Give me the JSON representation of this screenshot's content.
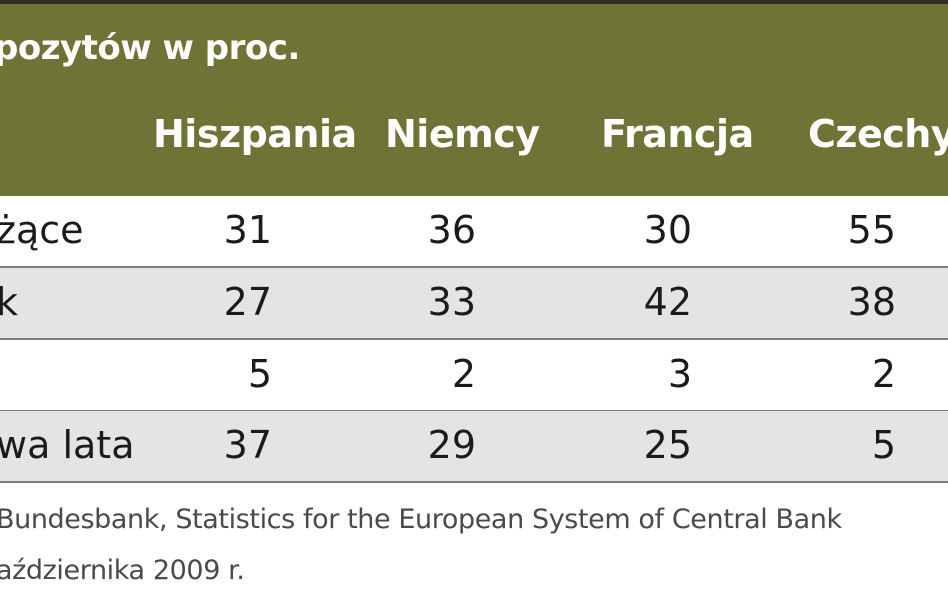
{
  "chart_data": {
    "type": "table",
    "title": "",
    "subtitle": "pozytów w proc.",
    "columns": [
      "Hiszpania",
      "Niemcy",
      "Francja",
      "Czechy"
    ],
    "rows": [
      {
        "label": "żące",
        "values": [
          31,
          36,
          30,
          55
        ]
      },
      {
        "label": "k",
        "values": [
          27,
          33,
          42,
          38
        ]
      },
      {
        "label": "",
        "values": [
          5,
          2,
          3,
          2
        ]
      },
      {
        "label": "wa lata",
        "values": [
          37,
          29,
          25,
          5
        ]
      }
    ],
    "source": "Bundesbank, Statistics for the European System of Central Bank",
    "date_note": "aździernika 2009 r."
  },
  "colors": {
    "header_bg": "#6f7436",
    "shaded_row": "#e4e4e4"
  }
}
